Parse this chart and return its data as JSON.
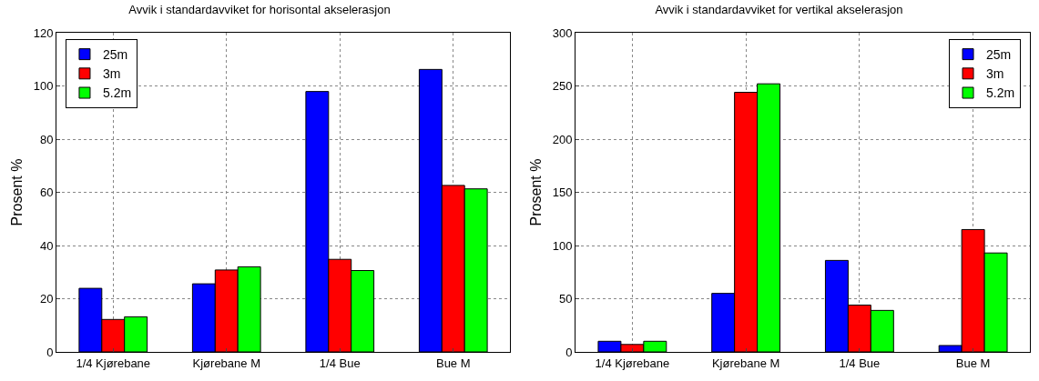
{
  "chart_data": [
    {
      "type": "bar",
      "title": "Avvik i standardavviket for horisontal akselerasjon",
      "ylabel": "Prosent %",
      "categories": [
        "1/4 Kjørebane",
        "Kjørebane M",
        "1/4 Bue",
        "Bue M"
      ],
      "series": [
        {
          "name": "25m",
          "color": "#0000ff",
          "values": [
            23.9,
            25.6,
            97.9,
            106.2
          ]
        },
        {
          "name": "3m",
          "color": "#ff0000",
          "values": [
            12.2,
            30.8,
            34.8,
            62.6
          ]
        },
        {
          "name": "5.2m",
          "color": "#00ff00",
          "values": [
            13.2,
            32,
            30.6,
            61.3
          ]
        }
      ],
      "ylim": [
        0,
        120
      ],
      "yticks": [
        0,
        20,
        40,
        60,
        80,
        100,
        120
      ],
      "grid": true,
      "legend": "top left"
    },
    {
      "type": "bar",
      "title": "Avvik i standardavviket for vertikal akselerasjon",
      "ylabel": "Prosent %",
      "categories": [
        "1/4 Kjørebane",
        "Kjørebane M",
        "1/4 Bue",
        "Bue M"
      ],
      "series": [
        {
          "name": "25m",
          "color": "#0000ff",
          "values": [
            10,
            55,
            86,
            6
          ]
        },
        {
          "name": "3m",
          "color": "#ff0000",
          "values": [
            7,
            244,
            44,
            115
          ]
        },
        {
          "name": "5.2m",
          "color": "#00ff00",
          "values": [
            10,
            252,
            39,
            93
          ]
        }
      ],
      "ylim": [
        0,
        300
      ],
      "yticks": [
        0,
        50,
        100,
        150,
        200,
        250,
        300
      ],
      "grid": true,
      "legend": "top right"
    }
  ]
}
